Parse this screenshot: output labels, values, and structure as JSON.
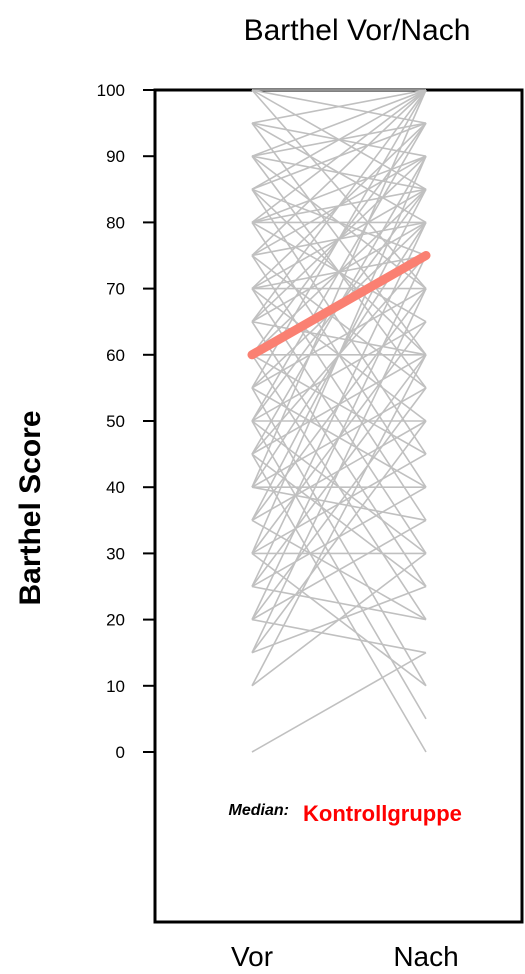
{
  "chart_data": {
    "type": "line",
    "title": "Barthel Vor/Nach",
    "ylabel": "Barthel Score",
    "xlabel": "",
    "categories": [
      "Vor",
      "Nach"
    ],
    "ylim": [
      0,
      100
    ],
    "yticks": [
      0,
      10,
      20,
      30,
      40,
      50,
      60,
      70,
      80,
      90,
      100
    ],
    "grid": false,
    "individual_lines_color": "#c0c0c0",
    "individual_pairs": [
      [
        100,
        100
      ],
      [
        100,
        95
      ],
      [
        100,
        85
      ],
      [
        95,
        100
      ],
      [
        95,
        90
      ],
      [
        95,
        80
      ],
      [
        90,
        100
      ],
      [
        90,
        95
      ],
      [
        90,
        85
      ],
      [
        90,
        70
      ],
      [
        85,
        100
      ],
      [
        85,
        95
      ],
      [
        85,
        75
      ],
      [
        85,
        60
      ],
      [
        80,
        100
      ],
      [
        80,
        90
      ],
      [
        80,
        85
      ],
      [
        80,
        65
      ],
      [
        75,
        100
      ],
      [
        75,
        90
      ],
      [
        75,
        80
      ],
      [
        75,
        55
      ],
      [
        70,
        95
      ],
      [
        70,
        85
      ],
      [
        70,
        75
      ],
      [
        70,
        50
      ],
      [
        65,
        100
      ],
      [
        65,
        90
      ],
      [
        65,
        80
      ],
      [
        65,
        60
      ],
      [
        60,
        95
      ],
      [
        60,
        85
      ],
      [
        60,
        75
      ],
      [
        60,
        45
      ],
      [
        55,
        100
      ],
      [
        55,
        80
      ],
      [
        55,
        70
      ],
      [
        55,
        40
      ],
      [
        50,
        95
      ],
      [
        50,
        85
      ],
      [
        50,
        65
      ],
      [
        50,
        30
      ],
      [
        45,
        90
      ],
      [
        45,
        75
      ],
      [
        45,
        60
      ],
      [
        45,
        25
      ],
      [
        40,
        100
      ],
      [
        40,
        80
      ],
      [
        40,
        55
      ],
      [
        40,
        35
      ],
      [
        35,
        85
      ],
      [
        35,
        70
      ],
      [
        35,
        50
      ],
      [
        35,
        20
      ],
      [
        30,
        90
      ],
      [
        30,
        65
      ],
      [
        30,
        45
      ],
      [
        30,
        30
      ],
      [
        25,
        80
      ],
      [
        25,
        60
      ],
      [
        25,
        40
      ],
      [
        20,
        75
      ],
      [
        20,
        55
      ],
      [
        20,
        35
      ],
      [
        20,
        15
      ],
      [
        15,
        70
      ],
      [
        15,
        50
      ],
      [
        15,
        25
      ],
      [
        10,
        60
      ],
      [
        10,
        30
      ],
      [
        0,
        15
      ],
      [
        100,
        70
      ],
      [
        95,
        60
      ],
      [
        90,
        55
      ],
      [
        85,
        45
      ],
      [
        80,
        40
      ],
      [
        75,
        35
      ],
      [
        70,
        30
      ],
      [
        65,
        25
      ],
      [
        60,
        20
      ],
      [
        55,
        10
      ],
      [
        50,
        5
      ],
      [
        45,
        0
      ],
      [
        30,
        10
      ],
      [
        25,
        20
      ],
      [
        60,
        60
      ],
      [
        70,
        70
      ],
      [
        80,
        80
      ],
      [
        50,
        50
      ],
      [
        40,
        40
      ]
    ],
    "median": {
      "label": "Median:",
      "group": "Kontrollgruppe",
      "color": "#fa8072",
      "values": [
        60,
        75
      ]
    }
  }
}
